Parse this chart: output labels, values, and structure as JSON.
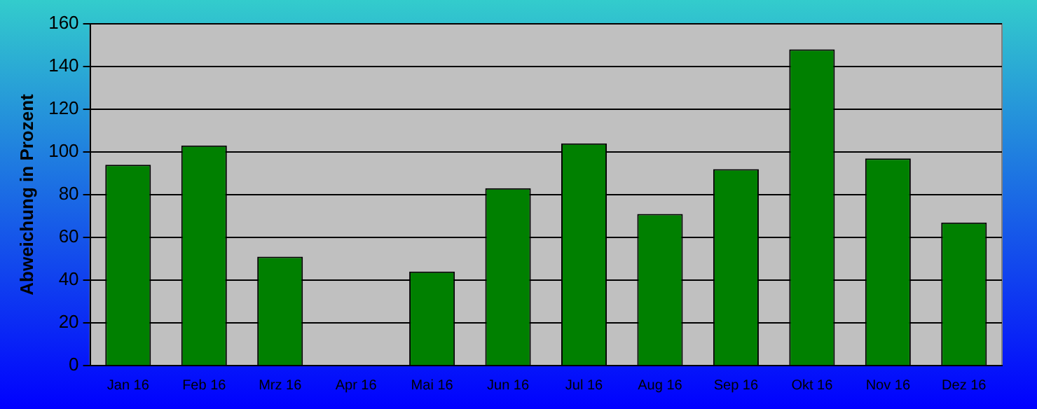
{
  "chart_data": {
    "type": "bar",
    "ylabel": "Abweichung in Prozent",
    "categories": [
      "Jan 16",
      "Feb 16",
      "Mrz 16",
      "Apr 16",
      "Mai 16",
      "Jun 16",
      "Jul 16",
      "Aug 16",
      "Sep 16",
      "Okt 16",
      "Nov 16",
      "Dez 16"
    ],
    "values": [
      94,
      103,
      51,
      null,
      44,
      83,
      104,
      71,
      92,
      148,
      97,
      67
    ],
    "color": "#008000",
    "ylim": [
      0,
      160
    ],
    "yticks": [
      0,
      20,
      40,
      60,
      80,
      100,
      120,
      140,
      160
    ],
    "grid": "y",
    "legend": false
  }
}
